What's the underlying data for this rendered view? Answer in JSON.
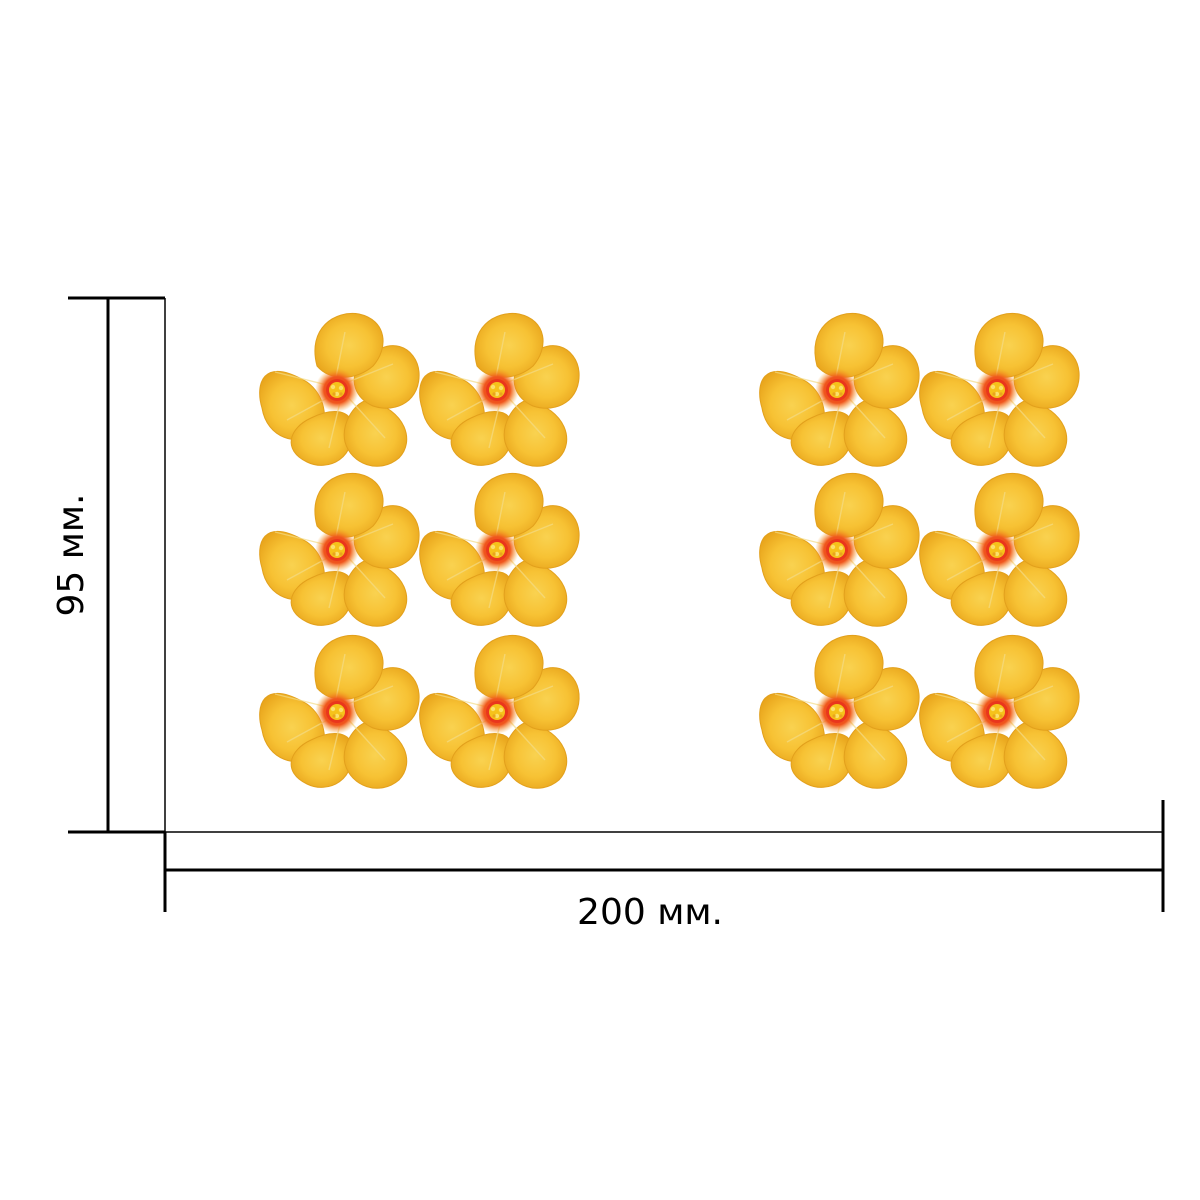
{
  "dimensions": {
    "height_label": "95 мм.",
    "width_label": "200 мм."
  },
  "flowers": {
    "count": 12,
    "groups": 2,
    "rows_per_group": 3,
    "columns_per_group": 2,
    "icon": "yellow-hibiscus-flower"
  },
  "colors": {
    "petal_light": "#fbd24a",
    "petal_mid": "#f7c234",
    "petal_dark": "#e9a51d",
    "petal_edge": "#d98f12",
    "center_red": "#e8331c",
    "center_orange": "#f58a1c",
    "stamen_yellow": "#f6c21a",
    "line": "#000000"
  }
}
